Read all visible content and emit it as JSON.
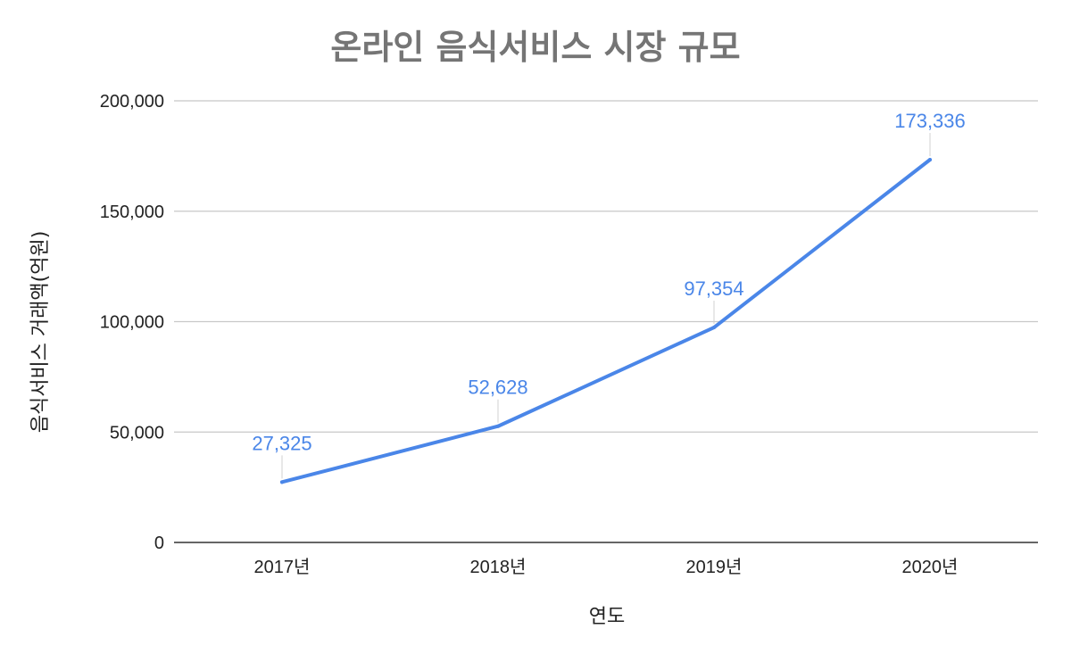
{
  "chart_data": {
    "type": "line",
    "title": "온라인 음식서비스 시장 규모",
    "xlabel": "연도",
    "ylabel": "음식서비스 거래액(억원)",
    "categories": [
      "2017년",
      "2018년",
      "2019년",
      "2020년"
    ],
    "series": [
      {
        "values": [
          27325,
          52628,
          97354,
          173336
        ],
        "color": "#4a86e8"
      }
    ],
    "data_labels": [
      "27,325",
      "52,628",
      "97,354",
      "173,336"
    ],
    "ylim": [
      0,
      200000
    ],
    "yticks": [
      0,
      50000,
      100000,
      150000,
      200000
    ],
    "ytick_labels": [
      "0",
      "50,000",
      "100,000",
      "150,000",
      "200,000"
    ],
    "grid": true,
    "legend": "none"
  }
}
